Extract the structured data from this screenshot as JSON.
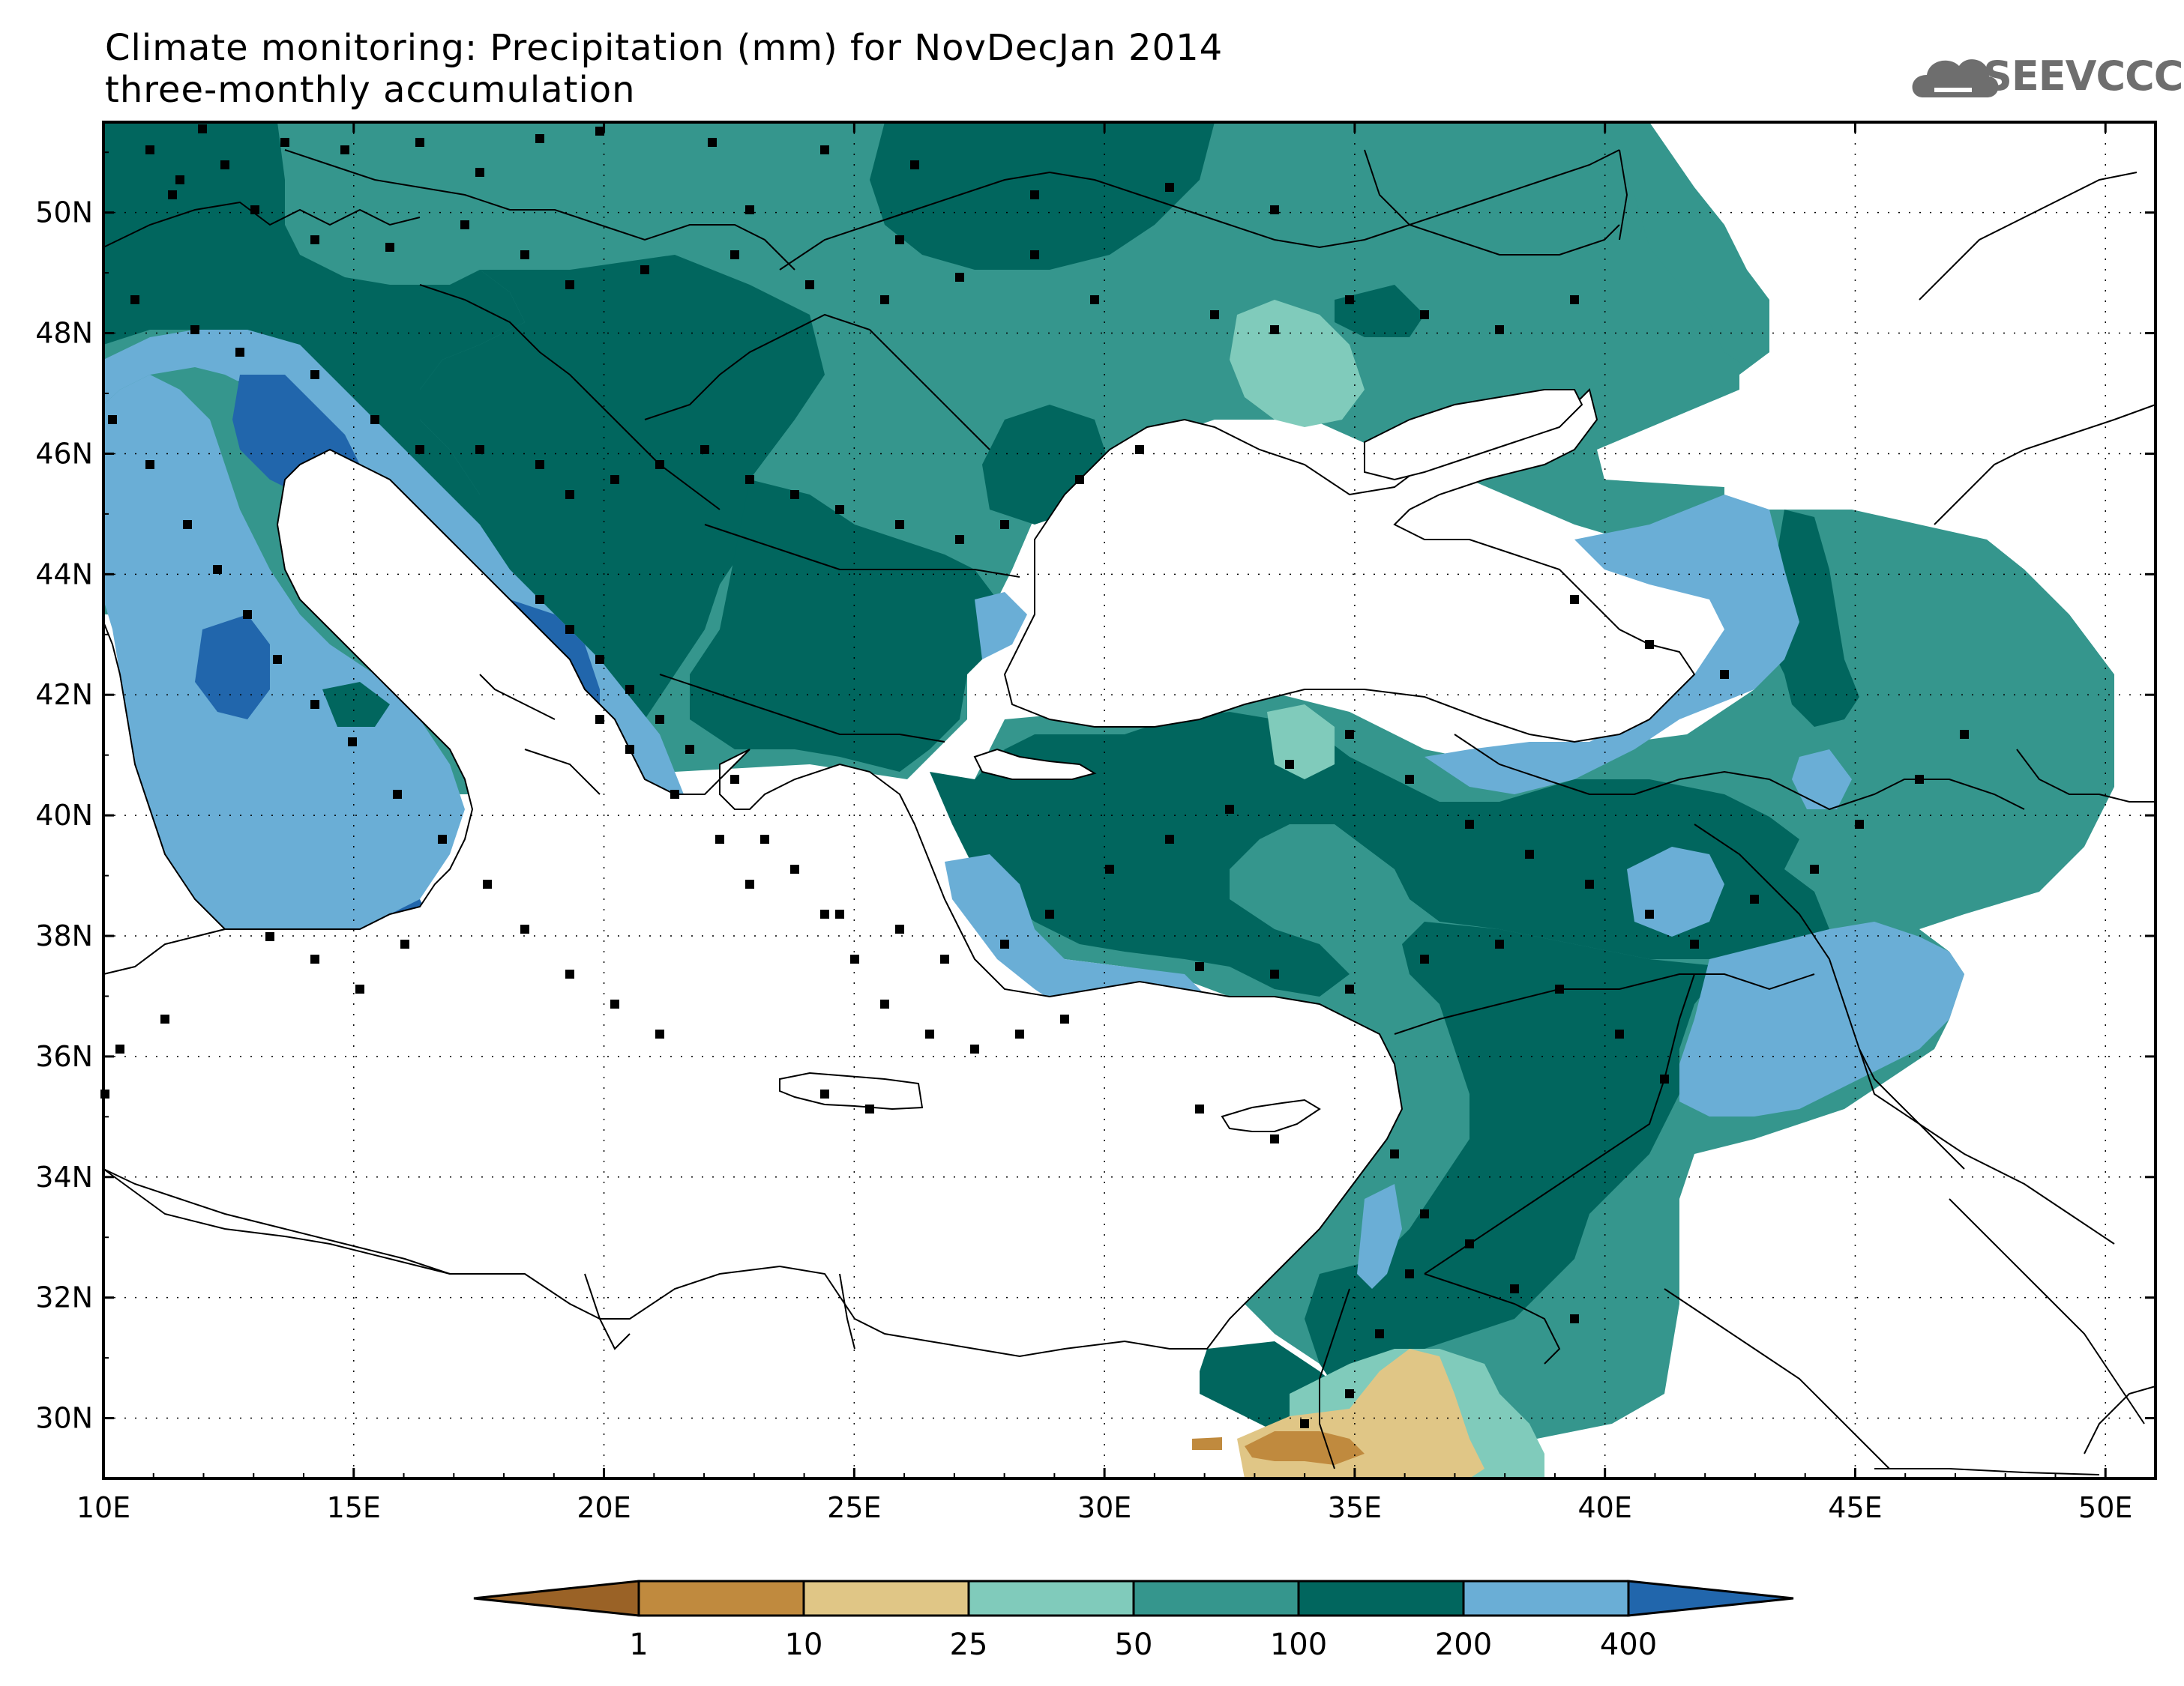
{
  "title": {
    "line1": "Climate monitoring: Precipitation (mm) for NovDecJan 2014",
    "line2": "three-monthly accumulation"
  },
  "logo": {
    "text": "SEEVCCC",
    "icon": "cloud-icon"
  },
  "map": {
    "lon_range": [
      10,
      51
    ],
    "lat_range": [
      29,
      51.5
    ],
    "lon_ticks": [
      "10E",
      "15E",
      "20E",
      "25E",
      "30E",
      "35E",
      "40E",
      "45E",
      "50E"
    ],
    "lat_ticks": [
      "30N",
      "32N",
      "34N",
      "36N",
      "38N",
      "40N",
      "42N",
      "44N",
      "46N",
      "48N",
      "50N"
    ],
    "grid": "dotted"
  },
  "colorbar": {
    "ticks": [
      "1",
      "10",
      "25",
      "50",
      "100",
      "200",
      "400"
    ],
    "colors": [
      "#9a6226",
      "#c08a3e",
      "#e0c686",
      "#80cbbb",
      "#35968d",
      "#01665e",
      "#6aaed6",
      "#2166ac"
    ]
  }
}
